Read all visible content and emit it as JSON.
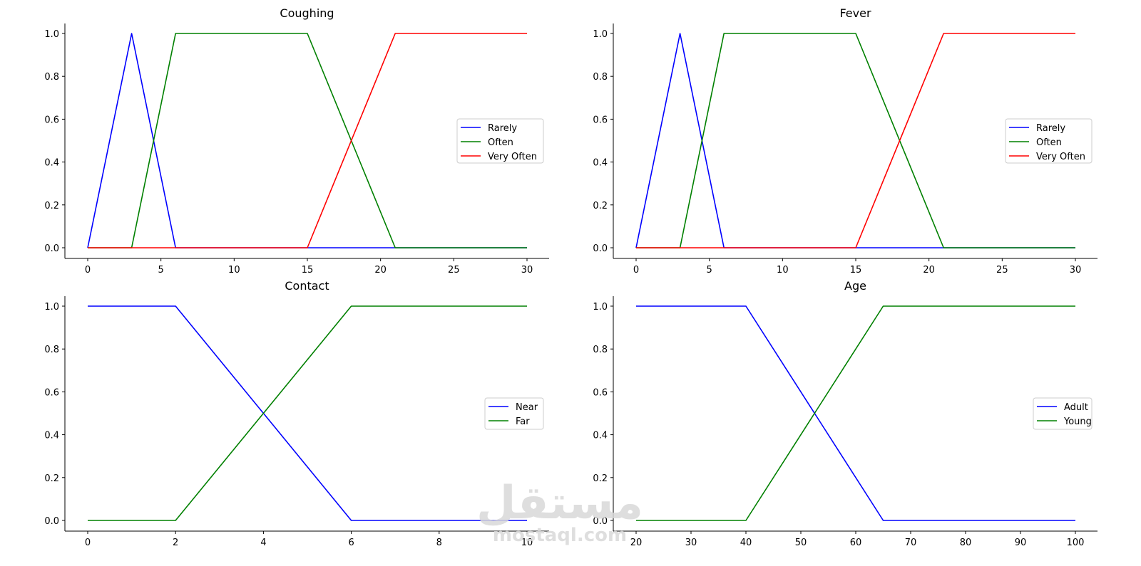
{
  "chart_data": [
    {
      "type": "line",
      "title": "Coughing",
      "xlim": [
        0,
        30
      ],
      "ylim": [
        0,
        1
      ],
      "xticks": [
        0,
        5,
        10,
        15,
        20,
        25,
        30
      ],
      "yticks": [
        0.0,
        0.2,
        0.4,
        0.6,
        0.8,
        1.0
      ],
      "grid": false,
      "legend_position": "center-right",
      "series": [
        {
          "name": "Rarely",
          "color": "#0000ff",
          "x": [
            0,
            3,
            6,
            30
          ],
          "y": [
            0,
            1,
            0,
            0
          ]
        },
        {
          "name": "Often",
          "color": "#008000",
          "x": [
            0,
            3,
            6,
            15,
            21,
            30
          ],
          "y": [
            0,
            0,
            1,
            1,
            0,
            0
          ]
        },
        {
          "name": "Very Often",
          "color": "#ff0000",
          "x": [
            0,
            15,
            21,
            30
          ],
          "y": [
            0,
            0,
            1,
            1
          ]
        }
      ]
    },
    {
      "type": "line",
      "title": "Fever",
      "xlim": [
        0,
        30
      ],
      "ylim": [
        0,
        1
      ],
      "xticks": [
        0,
        5,
        10,
        15,
        20,
        25,
        30
      ],
      "yticks": [
        0.0,
        0.2,
        0.4,
        0.6,
        0.8,
        1.0
      ],
      "grid": false,
      "legend_position": "center-right",
      "series": [
        {
          "name": "Rarely",
          "color": "#0000ff",
          "x": [
            0,
            3,
            6,
            30
          ],
          "y": [
            0,
            1,
            0,
            0
          ]
        },
        {
          "name": "Often",
          "color": "#008000",
          "x": [
            0,
            3,
            6,
            15,
            21,
            30
          ],
          "y": [
            0,
            0,
            1,
            1,
            0,
            0
          ]
        },
        {
          "name": "Very Often",
          "color": "#ff0000",
          "x": [
            0,
            15,
            21,
            30
          ],
          "y": [
            0,
            0,
            1,
            1
          ]
        }
      ]
    },
    {
      "type": "line",
      "title": "Contact",
      "xlim": [
        0,
        10
      ],
      "ylim": [
        0,
        1
      ],
      "xticks": [
        0,
        2,
        4,
        6,
        8,
        10
      ],
      "yticks": [
        0.0,
        0.2,
        0.4,
        0.6,
        0.8,
        1.0
      ],
      "grid": false,
      "legend_position": "center-right",
      "series": [
        {
          "name": "Near",
          "color": "#0000ff",
          "x": [
            0,
            2,
            6,
            10
          ],
          "y": [
            1,
            1,
            0,
            0
          ]
        },
        {
          "name": "Far",
          "color": "#008000",
          "x": [
            0,
            2,
            6,
            10
          ],
          "y": [
            0,
            0,
            1,
            1
          ]
        }
      ]
    },
    {
      "type": "line",
      "title": "Age",
      "xlim": [
        20,
        100
      ],
      "ylim": [
        0,
        1
      ],
      "xticks": [
        20,
        30,
        40,
        50,
        60,
        70,
        80,
        90,
        100
      ],
      "yticks": [
        0.0,
        0.2,
        0.4,
        0.6,
        0.8,
        1.0
      ],
      "grid": false,
      "legend_position": "center-right",
      "series": [
        {
          "name": "Adult",
          "color": "#0000ff",
          "x": [
            20,
            40,
            65,
            100
          ],
          "y": [
            1,
            1,
            0,
            0
          ]
        },
        {
          "name": "Young",
          "color": "#008000",
          "x": [
            20,
            40,
            65,
            100
          ],
          "y": [
            0,
            0,
            1,
            1
          ]
        }
      ]
    }
  ],
  "watermark": {
    "arabic": "مستقل",
    "latin": "mostaql.com"
  }
}
